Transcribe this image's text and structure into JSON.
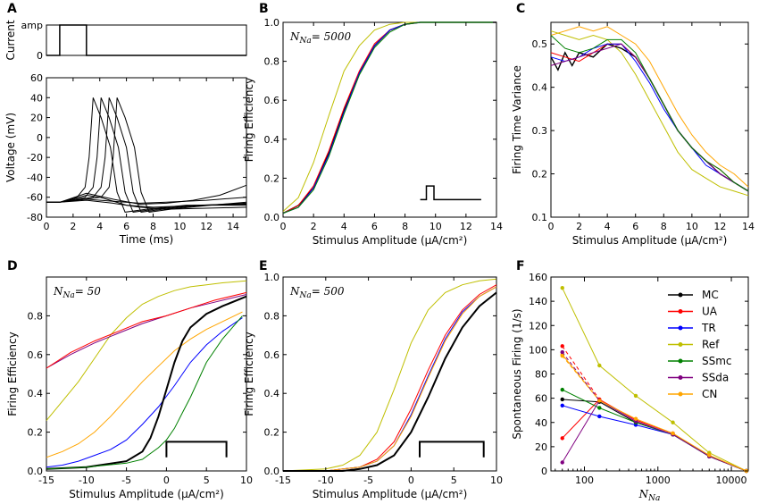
{
  "colors": {
    "MC": "#000000",
    "UA": "#ff0000",
    "TR": "#0000ff",
    "Ref": "#bfbf00",
    "SSmc": "#008000",
    "SSda": "#800080",
    "CN": "#ffa500"
  },
  "series_names": [
    "MC",
    "UA",
    "TR",
    "Ref",
    "SSmc",
    "SSda",
    "CN"
  ],
  "chart_data": [
    {
      "panel": "A",
      "type": "line",
      "sub": "current",
      "ylabel": "Current",
      "yticks": [
        "amp",
        "0"
      ],
      "pulse": {
        "on": 1,
        "off": 3
      }
    },
    {
      "panel": "A",
      "type": "line",
      "sub": "voltage",
      "xlabel": "Time (ms)",
      "ylabel": "Voltage (mV)",
      "xlim": [
        0,
        15
      ],
      "ylim": [
        -80,
        60
      ],
      "xticks": [
        0,
        2,
        4,
        6,
        8,
        10,
        12,
        14
      ],
      "yticks": [
        -80,
        -60,
        -40,
        -20,
        0,
        20,
        40,
        60
      ],
      "spike_peaks_ms": [
        3.5,
        4.1,
        4.7,
        5.3
      ],
      "peak_mV": 40
    },
    {
      "panel": "B",
      "type": "line",
      "annotation": "N_Na = 5000",
      "xlabel": "Stimulus Amplitude (μA/cm²)",
      "ylabel": "Firing Efficiency",
      "xlim": [
        0,
        14
      ],
      "ylim": [
        0,
        1
      ],
      "xticks": [
        0,
        2,
        4,
        6,
        8,
        10,
        12,
        14
      ],
      "yticks": [
        0.0,
        0.2,
        0.4,
        0.6,
        0.8,
        1.0
      ],
      "series": [
        {
          "name": "Ref",
          "x": [
            0,
            1,
            2,
            3,
            4,
            5,
            6,
            7,
            8,
            9,
            10,
            14
          ],
          "y": [
            0.03,
            0.1,
            0.28,
            0.52,
            0.75,
            0.88,
            0.96,
            0.99,
            1.0,
            1.0,
            1.0,
            1.0
          ]
        },
        {
          "name": "MC",
          "x": [
            0,
            1,
            2,
            3,
            4,
            5,
            6,
            7,
            8,
            9,
            10,
            14
          ],
          "y": [
            0.02,
            0.06,
            0.15,
            0.33,
            0.55,
            0.74,
            0.88,
            0.96,
            0.99,
            1.0,
            1.0,
            1.0
          ]
        },
        {
          "name": "UA",
          "x": [
            0,
            1,
            2,
            3,
            4,
            5,
            6,
            7,
            8,
            9,
            10,
            14
          ],
          "y": [
            0.02,
            0.06,
            0.16,
            0.34,
            0.56,
            0.75,
            0.89,
            0.96,
            0.99,
            1.0,
            1.0,
            1.0
          ]
        },
        {
          "name": "TR",
          "x": [
            0,
            1,
            2,
            3,
            4,
            5,
            6,
            7,
            8,
            9,
            10,
            14
          ],
          "y": [
            0.02,
            0.05,
            0.15,
            0.32,
            0.54,
            0.74,
            0.88,
            0.96,
            0.99,
            1.0,
            1.0,
            1.0
          ]
        },
        {
          "name": "SSmc",
          "x": [
            0,
            1,
            2,
            3,
            4,
            5,
            6,
            7,
            8,
            9,
            10,
            14
          ],
          "y": [
            0.02,
            0.05,
            0.14,
            0.31,
            0.53,
            0.73,
            0.87,
            0.95,
            0.99,
            1.0,
            1.0,
            1.0
          ]
        }
      ]
    },
    {
      "panel": "C",
      "type": "line",
      "xlabel": "Stimulus Amplitude (μA/cm²)",
      "ylabel": "Firing Time Variance",
      "xlim": [
        0,
        14
      ],
      "ylim": [
        0.1,
        0.55
      ],
      "xticks": [
        0,
        2,
        4,
        6,
        8,
        10,
        12,
        14
      ],
      "yticks": [
        0.1,
        0.2,
        0.3,
        0.4,
        0.5
      ],
      "series": [
        {
          "name": "CN",
          "x": [
            0,
            1,
            2,
            3,
            4,
            5,
            6,
            7,
            8,
            9,
            10,
            11,
            12,
            13,
            14
          ],
          "y": [
            0.52,
            0.53,
            0.54,
            0.53,
            0.54,
            0.52,
            0.5,
            0.46,
            0.4,
            0.34,
            0.29,
            0.25,
            0.22,
            0.2,
            0.17
          ]
        },
        {
          "name": "Ref",
          "x": [
            0,
            1,
            2,
            3,
            4,
            5,
            6,
            7,
            8,
            9,
            10,
            11,
            12,
            13,
            14
          ],
          "y": [
            0.53,
            0.52,
            0.51,
            0.52,
            0.51,
            0.48,
            0.43,
            0.37,
            0.31,
            0.25,
            0.21,
            0.19,
            0.17,
            0.16,
            0.15
          ]
        },
        {
          "name": "MC",
          "x": [
            0,
            0.5,
            1,
            1.5,
            2,
            3,
            4,
            5,
            6,
            7,
            8,
            9,
            10,
            11,
            12,
            13,
            14
          ],
          "y": [
            0.47,
            0.44,
            0.48,
            0.45,
            0.48,
            0.47,
            0.5,
            0.49,
            0.47,
            0.42,
            0.36,
            0.3,
            0.26,
            0.23,
            0.2,
            0.18,
            0.16
          ]
        },
        {
          "name": "UA",
          "x": [
            0,
            1,
            2,
            3,
            4,
            5,
            6,
            7,
            8,
            9,
            10,
            11,
            12,
            13,
            14
          ],
          "y": [
            0.48,
            0.47,
            0.46,
            0.48,
            0.5,
            0.5,
            0.47,
            0.42,
            0.36,
            0.3,
            0.26,
            0.23,
            0.21,
            0.18,
            0.16
          ]
        },
        {
          "name": "TR",
          "x": [
            0,
            1,
            2,
            3,
            4,
            5,
            6,
            7,
            8,
            9,
            10,
            11,
            12,
            13,
            14
          ],
          "y": [
            0.47,
            0.46,
            0.47,
            0.49,
            0.5,
            0.5,
            0.46,
            0.41,
            0.35,
            0.3,
            0.26,
            0.22,
            0.2,
            0.18,
            0.16
          ]
        },
        {
          "name": "SSda",
          "x": [
            0,
            1,
            2,
            3,
            4,
            5,
            6,
            7,
            8,
            9,
            10,
            11,
            12,
            13,
            14
          ],
          "y": [
            0.45,
            0.46,
            0.47,
            0.48,
            0.49,
            0.5,
            0.47,
            0.42,
            0.36,
            0.3,
            0.26,
            0.23,
            0.2,
            0.18,
            0.16
          ]
        },
        {
          "name": "SSmc",
          "x": [
            0,
            1,
            2,
            3,
            4,
            5,
            6,
            7,
            8,
            9,
            10,
            11,
            12,
            13,
            14
          ],
          "y": [
            0.52,
            0.49,
            0.48,
            0.49,
            0.51,
            0.51,
            0.48,
            0.42,
            0.36,
            0.3,
            0.26,
            0.23,
            0.21,
            0.18,
            0.16
          ]
        }
      ]
    },
    {
      "panel": "D",
      "type": "line",
      "annotation": "N_Na = 50",
      "xlabel": "Stimulus Amplitude (μA/cm²)",
      "ylabel": "Firing Efficiency",
      "xlim": [
        -15,
        10
      ],
      "ylim": [
        0,
        1
      ],
      "xticks": [
        -15,
        -10,
        -5,
        0,
        5,
        10
      ],
      "yticks": [
        0.0,
        0.2,
        0.4,
        0.6,
        0.8
      ],
      "series": [
        {
          "name": "Ref",
          "x": [
            -15,
            -13,
            -11,
            -9,
            -7,
            -5,
            -3,
            -1,
            1,
            3,
            5,
            7,
            10
          ],
          "y": [
            0.26,
            0.36,
            0.46,
            0.58,
            0.7,
            0.79,
            0.86,
            0.9,
            0.93,
            0.95,
            0.96,
            0.97,
            0.98
          ]
        },
        {
          "name": "SSda",
          "x": [
            -15,
            -12,
            -9,
            -6,
            -3,
            0,
            3,
            6,
            10
          ],
          "y": [
            0.53,
            0.6,
            0.66,
            0.71,
            0.76,
            0.8,
            0.84,
            0.87,
            0.91
          ]
        },
        {
          "name": "UA",
          "x": [
            -15,
            -12,
            -9,
            -6,
            -3,
            0,
            3,
            6,
            10
          ],
          "y": [
            0.53,
            0.61,
            0.67,
            0.72,
            0.77,
            0.8,
            0.84,
            0.88,
            0.92
          ]
        },
        {
          "name": "CN",
          "x": [
            -15,
            -13,
            -11,
            -9,
            -7,
            -5,
            -3,
            -1,
            1,
            3,
            5,
            7,
            9.5
          ],
          "y": [
            0.07,
            0.1,
            0.14,
            0.2,
            0.28,
            0.37,
            0.46,
            0.54,
            0.62,
            0.68,
            0.73,
            0.77,
            0.82
          ]
        },
        {
          "name": "TR",
          "x": [
            -15,
            -13,
            -11,
            -9,
            -7,
            -5,
            -3,
            -1,
            1,
            3,
            5,
            7,
            9.5
          ],
          "y": [
            0.02,
            0.03,
            0.05,
            0.08,
            0.11,
            0.16,
            0.24,
            0.33,
            0.44,
            0.56,
            0.65,
            0.72,
            0.79
          ]
        },
        {
          "name": "MC",
          "x": [
            -15,
            -10,
            -5,
            -3,
            -2,
            -1,
            0,
            1,
            2,
            3,
            5,
            7,
            10
          ],
          "y": [
            0.01,
            0.02,
            0.05,
            0.1,
            0.17,
            0.28,
            0.42,
            0.56,
            0.67,
            0.74,
            0.81,
            0.85,
            0.9
          ]
        },
        {
          "name": "SSmc",
          "x": [
            -15,
            -10,
            -5,
            -3,
            -1,
            0,
            1,
            2,
            3,
            5,
            7,
            9.5
          ],
          "y": [
            0.01,
            0.02,
            0.04,
            0.06,
            0.12,
            0.16,
            0.22,
            0.3,
            0.38,
            0.56,
            0.68,
            0.8
          ]
        }
      ],
      "stimulus_bar": {
        "x": [
          0,
          7.5
        ]
      }
    },
    {
      "panel": "E",
      "type": "line",
      "annotation": "N_Na = 500",
      "xlabel": "Stimulus Amplitude (μA/cm²)",
      "ylabel": "Firing Efficiency",
      "xlim": [
        -15,
        10
      ],
      "ylim": [
        0,
        1
      ],
      "xticks": [
        -15,
        -10,
        -5,
        0,
        5,
        10
      ],
      "yticks": [
        0.0,
        0.2,
        0.4,
        0.6,
        0.8,
        1.0
      ],
      "series": [
        {
          "name": "Ref",
          "x": [
            -15,
            -10,
            -8,
            -6,
            -4,
            -2,
            0,
            2,
            4,
            6,
            8,
            10
          ],
          "y": [
            0.0,
            0.01,
            0.03,
            0.08,
            0.2,
            0.42,
            0.66,
            0.83,
            0.92,
            0.96,
            0.98,
            0.99
          ]
        },
        {
          "name": "UA",
          "x": [
            -15,
            -10,
            -8,
            -6,
            -4,
            -2,
            0,
            2,
            4,
            6,
            8,
            10
          ],
          "y": [
            0.0,
            0.0,
            0.01,
            0.02,
            0.06,
            0.15,
            0.32,
            0.52,
            0.7,
            0.83,
            0.91,
            0.96
          ]
        },
        {
          "name": "TR",
          "x": [
            -15,
            -10,
            -8,
            -6,
            -4,
            -2,
            0,
            2,
            4,
            6,
            8,
            10
          ],
          "y": [
            0.0,
            0.0,
            0.01,
            0.02,
            0.05,
            0.13,
            0.29,
            0.49,
            0.68,
            0.82,
            0.9,
            0.95
          ]
        },
        {
          "name": "CN",
          "x": [
            -15,
            -10,
            -8,
            -6,
            -4,
            -2,
            0,
            2,
            4,
            6,
            8,
            10
          ],
          "y": [
            0.0,
            0.0,
            0.01,
            0.02,
            0.05,
            0.13,
            0.28,
            0.48,
            0.67,
            0.81,
            0.9,
            0.95
          ]
        },
        {
          "name": "MC",
          "x": [
            -15,
            -10,
            -8,
            -6,
            -4,
            -2,
            0,
            2,
            4,
            6,
            8,
            10
          ],
          "y": [
            0.0,
            0.0,
            0.0,
            0.01,
            0.03,
            0.08,
            0.2,
            0.38,
            0.58,
            0.74,
            0.85,
            0.92
          ]
        }
      ],
      "stimulus_bar": {
        "x": [
          1,
          8.5
        ]
      }
    },
    {
      "panel": "F",
      "type": "line",
      "xlabel": "N_Na",
      "ylabel": "Spontaneous Firing (1/s)",
      "xscale": "log",
      "xlim": [
        35,
        17000
      ],
      "ylim": [
        0,
        160
      ],
      "xticks": [
        100,
        1000,
        10000
      ],
      "xtick_labels": [
        "100",
        "1000",
        "10000"
      ],
      "yticks": [
        0,
        20,
        40,
        60,
        80,
        100,
        120,
        140,
        160
      ],
      "series": [
        {
          "name": "MC",
          "x": [
            50,
            160,
            500,
            1600,
            5000,
            16000
          ],
          "y": [
            59,
            57,
            40,
            30,
            12,
            0
          ]
        },
        {
          "name": "UA",
          "x": [
            50,
            160,
            500,
            1600,
            5000,
            16000
          ],
          "y": [
            27,
            59,
            42,
            31,
            12,
            0
          ]
        },
        {
          "name": "TR",
          "x": [
            50,
            160,
            500,
            1600,
            5000,
            16000
          ],
          "y": [
            54,
            45,
            38,
            30,
            12,
            0
          ]
        },
        {
          "name": "Ref",
          "x": [
            50,
            160,
            500,
            1600,
            5000,
            16000
          ],
          "y": [
            151,
            87,
            62,
            40,
            15,
            0
          ]
        },
        {
          "name": "SSmc",
          "x": [
            50,
            160,
            500,
            1600,
            5000,
            16000
          ],
          "y": [
            67,
            52,
            40,
            30,
            12,
            0
          ]
        },
        {
          "name": "SSda",
          "x": [
            50,
            160,
            500,
            1600,
            5000,
            16000
          ],
          "y": [
            7,
            58,
            41,
            30,
            12,
            0
          ]
        },
        {
          "name": "CN",
          "x": [
            50,
            160,
            500,
            1600,
            5000,
            16000
          ],
          "y": [
            96,
            58,
            43,
            31,
            13,
            0
          ]
        }
      ],
      "dashed": {
        "UA": [
          [
            50,
            103
          ],
          [
            160,
            59
          ]
        ],
        "SSda": [
          [
            50,
            98
          ],
          [
            160,
            58
          ]
        ],
        "CN": [
          [
            50,
            95
          ],
          [
            160,
            58
          ]
        ]
      },
      "legend": [
        "MC",
        "UA",
        "TR",
        "Ref",
        "SSmc",
        "SSda",
        "CN"
      ],
      "legend_position": "top-right"
    }
  ],
  "labels": {
    "A": "A",
    "B": "B",
    "C": "C",
    "D": "D",
    "E": "E",
    "F": "F",
    "current": "Current",
    "amp": "amp",
    "zero": "0",
    "time": "Time (ms)",
    "voltage": "Voltage (mV)",
    "stim": "Stimulus Amplitude",
    "stim_unit": "(μA/cm²)",
    "fe": "Firing Efficiency",
    "ftv": "Firing Time Variance",
    "sf": "Spontaneous Firing (1/s)",
    "nna": "N",
    "nna_sub": "Na",
    "annB": "= 5000",
    "annD": "= 50",
    "annE": "= 500"
  }
}
